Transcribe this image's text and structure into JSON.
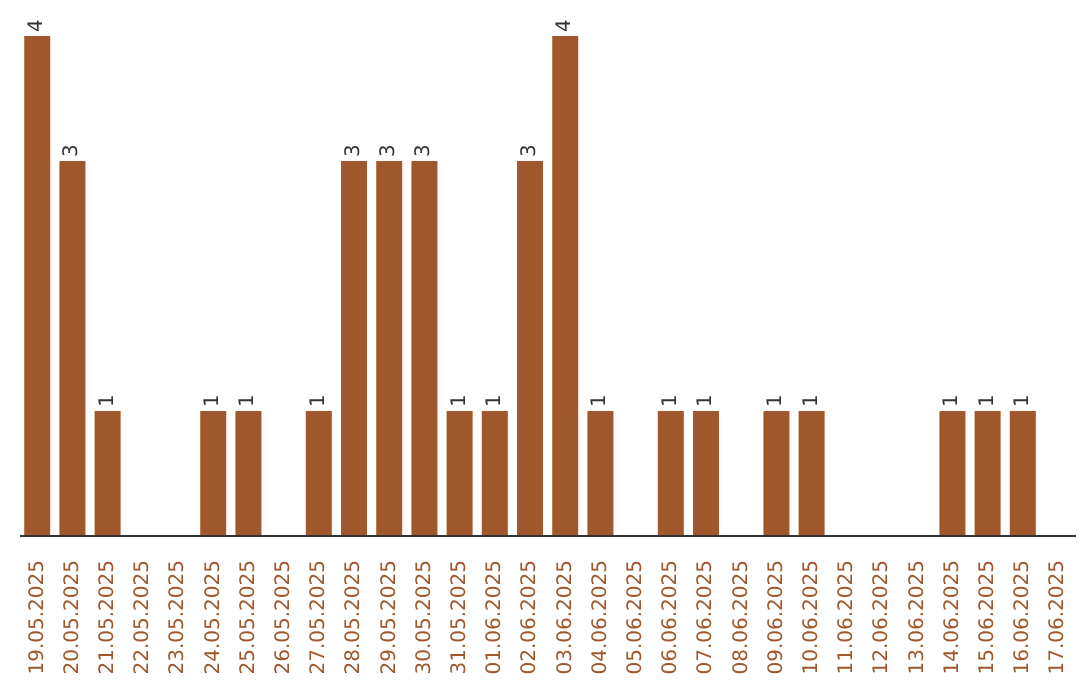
{
  "chart_data": {
    "type": "bar",
    "relative": false,
    "categories": [
      "19.05.2025",
      "20.05.2025",
      "21.05.2025",
      "22.05.2025",
      "23.05.2025",
      "24.05.2025",
      "25.05.2025",
      "26.05.2025",
      "27.05.2025",
      "28.05.2025",
      "29.05.2025",
      "30.05.2025",
      "31.05.2025",
      "01.06.2025",
      "02.06.2025",
      "03.06.2025",
      "04.06.2025",
      "05.06.2025",
      "06.06.2025",
      "07.06.2025",
      "08.06.2025",
      "09.06.2025",
      "10.06.2025",
      "11.06.2025",
      "12.06.2025",
      "13.06.2025",
      "14.06.2025",
      "15.06.2025",
      "16.06.2025",
      "17.06.2025"
    ],
    "values": [
      4,
      3,
      1,
      0,
      0,
      1,
      1,
      0,
      1,
      3,
      3,
      3,
      1,
      1,
      3,
      4,
      1,
      0,
      1,
      1,
      0,
      1,
      1,
      0,
      0,
      0,
      1,
      1,
      1,
      0
    ],
    "value_labels": [
      "4",
      "3",
      "1",
      null,
      null,
      "1",
      "1",
      null,
      "1",
      "3",
      "3",
      "3",
      "1",
      "1",
      "3",
      "4",
      "1",
      null,
      "1",
      "1",
      null,
      "1",
      "1",
      null,
      null,
      null,
      "1",
      "1",
      "1",
      null
    ],
    "color": "#a0572b"
  }
}
